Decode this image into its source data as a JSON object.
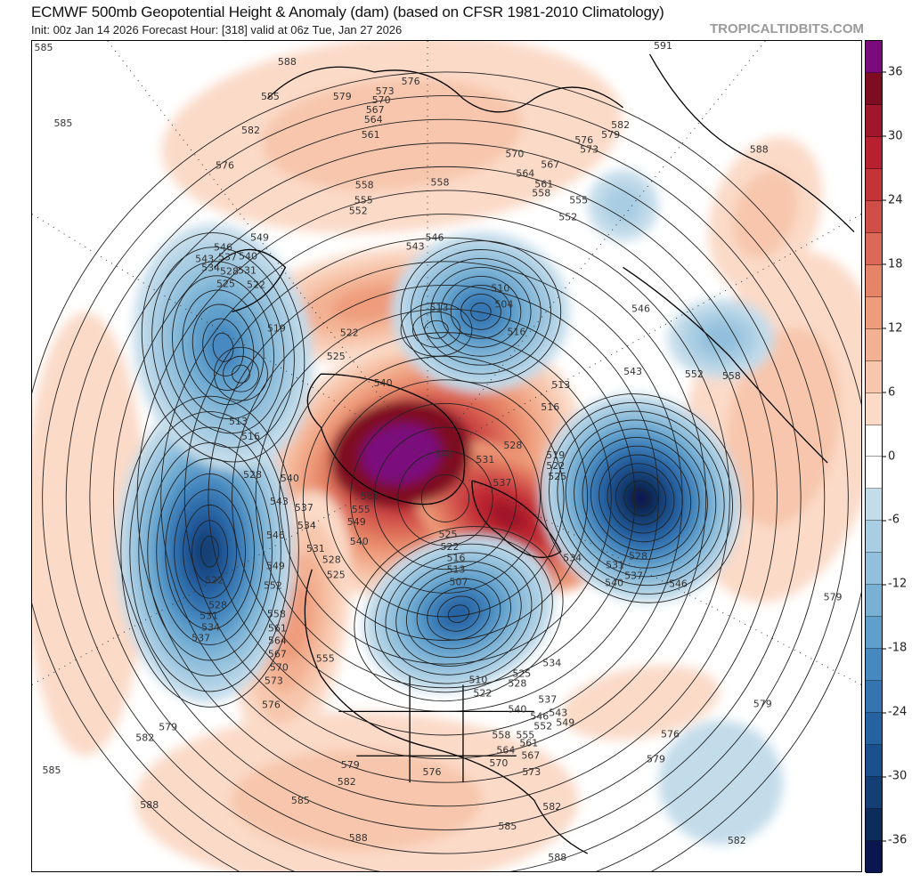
{
  "header": {
    "title": "ECMWF 500mb Geopotential Height & Anomaly (dam) (based on CFSR 1981-2010 Climatology)",
    "subtitle": "Init: 00z Jan 14 2026   Forecast Hour: [318]   valid at 06z Tue, Jan 27 2026",
    "brand": "TROPICALTIDBITS.COM"
  },
  "colorbar": {
    "tick_labels": [
      "36",
      "30",
      "24",
      "18",
      "12",
      "6",
      "0",
      "-6",
      "-12",
      "-18",
      "-24",
      "-30",
      "-36"
    ],
    "colors": [
      "#7b0a7d",
      "#7f0d22",
      "#a0172c",
      "#b7202f",
      "#c43338",
      "#cf4e48",
      "#db6957",
      "#e58466",
      "#ee9c7c",
      "#f3b193",
      "#f7c6ac",
      "#fbdac8",
      "#ffffff",
      "#ffffff",
      "#c3dcea",
      "#a9cde3",
      "#92c0dc",
      "#79b1d5",
      "#5e9fcb",
      "#4689c0",
      "#3474b1",
      "#2562a2",
      "#1b508e",
      "#143f75",
      "#0c2d5a",
      "#0b1650"
    ]
  },
  "contour_labels": [
    "585",
    "585",
    "588",
    "591",
    "576",
    "573",
    "570",
    "567",
    "564",
    "561",
    "579",
    "585",
    "582",
    "576",
    "570",
    "567",
    "564",
    "561",
    "558",
    "555",
    "552",
    "582",
    "579",
    "576",
    "573",
    "588",
    "558",
    "555",
    "552",
    "558",
    "549",
    "546",
    "543",
    "540",
    "537",
    "534",
    "531",
    "528",
    "525",
    "522",
    "519",
    "522",
    "525",
    "513",
    "510",
    "504",
    "516",
    "543",
    "546",
    "513",
    "516",
    "528",
    "540",
    "543",
    "537",
    "534",
    "531",
    "546",
    "549",
    "552",
    "558",
    "561",
    "564",
    "567",
    "570",
    "573",
    "576",
    "579",
    "582",
    "585",
    "588",
    "522",
    "528",
    "531",
    "534",
    "537",
    "540",
    "561",
    "555",
    "549",
    "540",
    "528",
    "525",
    "546",
    "531",
    "528",
    "537",
    "519",
    "522",
    "525",
    "516",
    "513",
    "534",
    "531",
    "528",
    "537",
    "540",
    "546",
    "579",
    "579",
    "576",
    "579",
    "582",
    "582",
    "585",
    "588",
    "588",
    "555",
    "510",
    "522",
    "525",
    "528",
    "534",
    "537",
    "543",
    "549",
    "540",
    "546",
    "552",
    "558",
    "555",
    "561",
    "564",
    "567",
    "570",
    "573",
    "576",
    "579",
    "582",
    "585",
    "507",
    "513",
    "516",
    "522",
    "525",
    "552",
    "558",
    "543",
    "546"
  ]
}
